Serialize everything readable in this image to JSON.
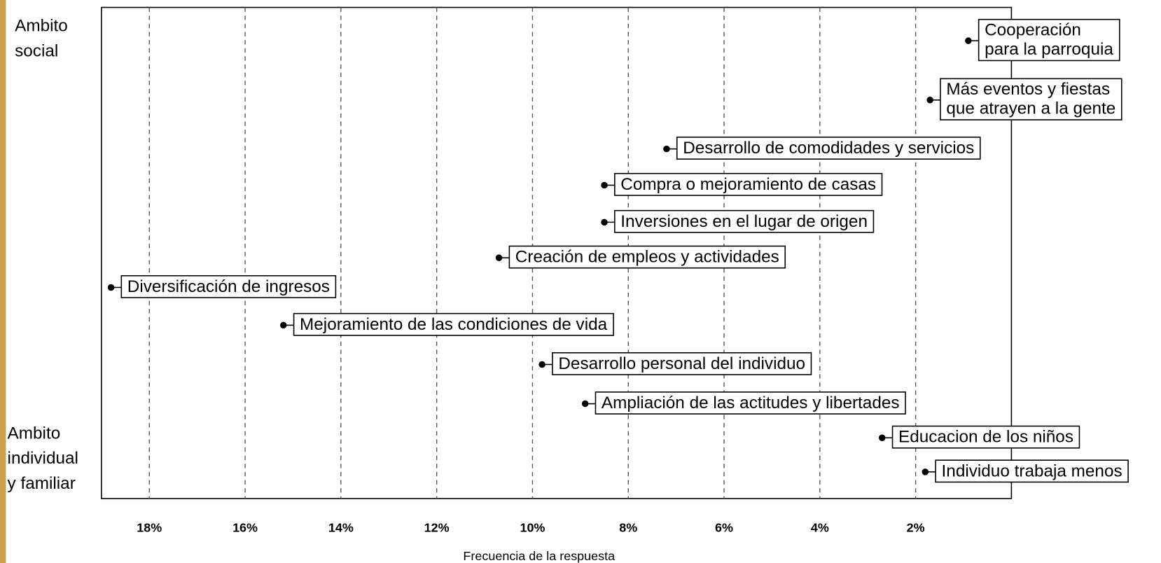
{
  "chart_data": {
    "type": "dot",
    "xlabel": "Frecuencia de la respuesta",
    "annotations": [
      "Ambito\nsocial",
      "Ambito\nindividual\ny familiar"
    ],
    "categories": [
      "Cooperación\npara la parroquia",
      "Más eventos y fiestas\nque atrayen a la gente",
      "Desarrollo de comodidades y servicios",
      "Compra o mejoramiento de casas",
      "Inversiones en el lugar de origen",
      "Creación de empleos y actividades",
      "Diversificación de ingresos",
      "Mejoramiento de las  condiciones de vida",
      "Desarrollo personal del individuo",
      "Ampliación de las actitudes y libertades",
      "Educacion de los niños",
      "Individuo trabaja menos"
    ],
    "values": [
      0.9,
      1.7,
      7.2,
      8.5,
      8.5,
      10.7,
      18.8,
      15.2,
      9.8,
      8.9,
      2.7,
      1.8
    ],
    "color": "#000000",
    "xlim": [
      19,
      0
    ],
    "xticks": [
      {
        "value": 18,
        "label": "18%"
      },
      {
        "value": 16,
        "label": "16%"
      },
      {
        "value": 14,
        "label": "14%"
      },
      {
        "value": 12,
        "label": "12%"
      },
      {
        "value": 10,
        "label": "10%"
      },
      {
        "value": 8,
        "label": "8%"
      },
      {
        "value": 6,
        "label": "6%"
      },
      {
        "value": 4,
        "label": "4%"
      },
      {
        "value": 2,
        "label": "2%"
      }
    ],
    "grid": true
  }
}
